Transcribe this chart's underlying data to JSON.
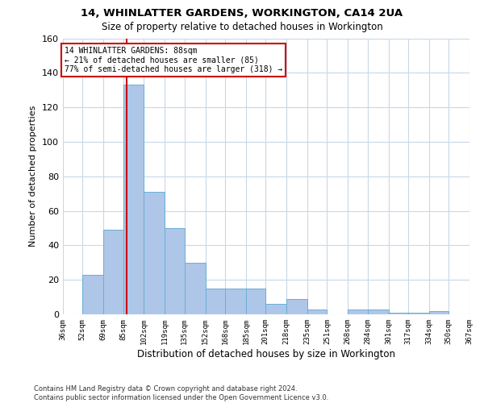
{
  "title1": "14, WHINLATTER GARDENS, WORKINGTON, CA14 2UA",
  "title2": "Size of property relative to detached houses in Workington",
  "xlabel": "Distribution of detached houses by size in Workington",
  "ylabel": "Number of detached properties",
  "bin_edges": [
    36,
    52,
    69,
    85,
    102,
    119,
    135,
    152,
    168,
    185,
    201,
    218,
    235,
    251,
    268,
    284,
    301,
    317,
    334,
    350,
    367
  ],
  "bin_labels": [
    "36sqm",
    "52sqm",
    "69sqm",
    "85sqm",
    "102sqm",
    "119sqm",
    "135sqm",
    "152sqm",
    "168sqm",
    "185sqm",
    "201sqm",
    "218sqm",
    "235sqm",
    "251sqm",
    "268sqm",
    "284sqm",
    "301sqm",
    "317sqm",
    "334sqm",
    "350sqm",
    "367sqm"
  ],
  "bar_values": [
    0,
    23,
    49,
    133,
    71,
    50,
    30,
    15,
    15,
    15,
    6,
    9,
    3,
    0,
    3,
    3,
    1,
    1,
    2,
    0
  ],
  "bar_color": "#aec6e8",
  "bar_edge_color": "#6aafd6",
  "vline_x": 88,
  "vline_color": "#cc0000",
  "annotation_text": "14 WHINLATTER GARDENS: 88sqm\n← 21% of detached houses are smaller (85)\n77% of semi-detached houses are larger (318) →",
  "annotation_box_color": "white",
  "annotation_box_edge": "#cc0000",
  "ylim": [
    0,
    160
  ],
  "yticks": [
    0,
    20,
    40,
    60,
    80,
    100,
    120,
    140,
    160
  ],
  "grid_color": "#c8d8e8",
  "footer": "Contains HM Land Registry data © Crown copyright and database right 2024.\nContains public sector information licensed under the Open Government Licence v3.0."
}
